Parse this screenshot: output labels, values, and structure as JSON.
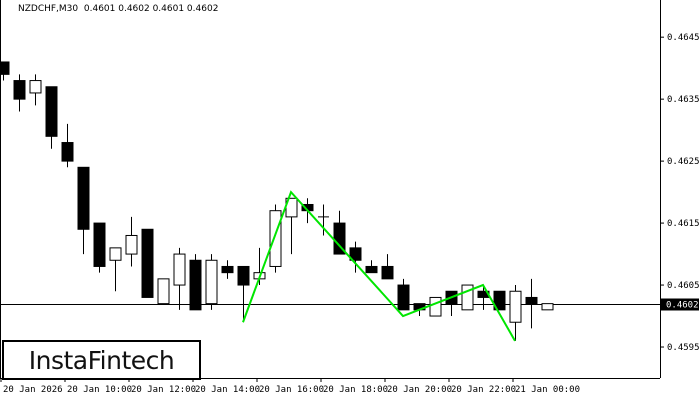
{
  "header": {
    "symbol": "NZDCHF,M30",
    "ohlc": "0.4601 0.4602 0.4601 0.4602"
  },
  "logo": {
    "text": "InstaFintech"
  },
  "colors": {
    "pattern": "#00e600",
    "bull_body": "#ffffff",
    "bear_body": "#000000",
    "background": "#ffffff"
  },
  "chart_data": {
    "type": "candlestick",
    "title": "NZDCHF,M30",
    "ylim": [
      0.459,
      0.4651
    ],
    "y_ticks": [
      "0.4645",
      "0.4635",
      "0.4625",
      "0.4615",
      "0.4605",
      "0.4595"
    ],
    "x_tick_labels": [
      "20 Jan 2026",
      "20 Jan 10:00",
      "20 Jan 12:00",
      "20 Jan 14:00",
      "20 Jan 16:00",
      "20 Jan 18:00",
      "20 Jan 20:00",
      "20 Jan 22:00",
      "21 Jan 00:00"
    ],
    "current_price": "0.4602",
    "candles_ohlc": [
      [
        0.4641,
        0.4641,
        0.4638,
        0.4639
      ],
      [
        0.4638,
        0.4639,
        0.4633,
        0.4635
      ],
      [
        0.4636,
        0.4639,
        0.4634,
        0.4638
      ],
      [
        0.4637,
        0.4637,
        0.4627,
        0.4629
      ],
      [
        0.4628,
        0.4631,
        0.4624,
        0.4625
      ],
      [
        0.4624,
        0.4624,
        0.461,
        0.4614
      ],
      [
        0.4615,
        0.4615,
        0.4607,
        0.4608
      ],
      [
        0.4609,
        0.4611,
        0.4604,
        0.4611
      ],
      [
        0.461,
        0.4616,
        0.4608,
        0.4613
      ],
      [
        0.4614,
        0.4614,
        0.4603,
        0.4603
      ],
      [
        0.4602,
        0.4606,
        0.4602,
        0.4606
      ],
      [
        0.4605,
        0.4611,
        0.4601,
        0.461
      ],
      [
        0.4609,
        0.461,
        0.4601,
        0.4601
      ],
      [
        0.4602,
        0.461,
        0.4601,
        0.4609
      ],
      [
        0.4608,
        0.4609,
        0.4606,
        0.4607
      ],
      [
        0.4608,
        0.4608,
        0.4599,
        0.4605
      ],
      [
        0.4606,
        0.4611,
        0.4605,
        0.4607
      ],
      [
        0.4608,
        0.4618,
        0.4607,
        0.4617
      ],
      [
        0.4616,
        0.4619,
        0.461,
        0.4619
      ],
      [
        0.4618,
        0.4619,
        0.4615,
        0.4617
      ],
      [
        0.4616,
        0.4618,
        0.4613,
        0.4616
      ],
      [
        0.4615,
        0.4617,
        0.461,
        0.461
      ],
      [
        0.4611,
        0.4612,
        0.4607,
        0.4609
      ],
      [
        0.4608,
        0.4609,
        0.4607,
        0.4607
      ],
      [
        0.4608,
        0.461,
        0.4606,
        0.4606
      ],
      [
        0.4605,
        0.4606,
        0.4601,
        0.4601
      ],
      [
        0.4602,
        0.4602,
        0.46,
        0.4601
      ],
      [
        0.46,
        0.4603,
        0.46,
        0.4603
      ],
      [
        0.4604,
        0.4604,
        0.46,
        0.4602
      ],
      [
        0.4601,
        0.4605,
        0.4601,
        0.4605
      ],
      [
        0.4604,
        0.4605,
        0.4601,
        0.4603
      ],
      [
        0.4604,
        0.4604,
        0.4601,
        0.4601
      ],
      [
        0.4599,
        0.4605,
        0.4596,
        0.4604
      ],
      [
        0.4603,
        0.4606,
        0.4598,
        0.4602
      ],
      [
        0.4601,
        0.4602,
        0.4601,
        0.4602
      ]
    ],
    "pattern_points": [
      {
        "candle": 15,
        "price": 0.4599
      },
      {
        "candle": 18,
        "price": 0.462
      },
      {
        "candle": 25,
        "price": 0.46
      },
      {
        "candle": 30,
        "price": 0.4605
      },
      {
        "candle": 32,
        "price": 0.4596
      }
    ]
  }
}
